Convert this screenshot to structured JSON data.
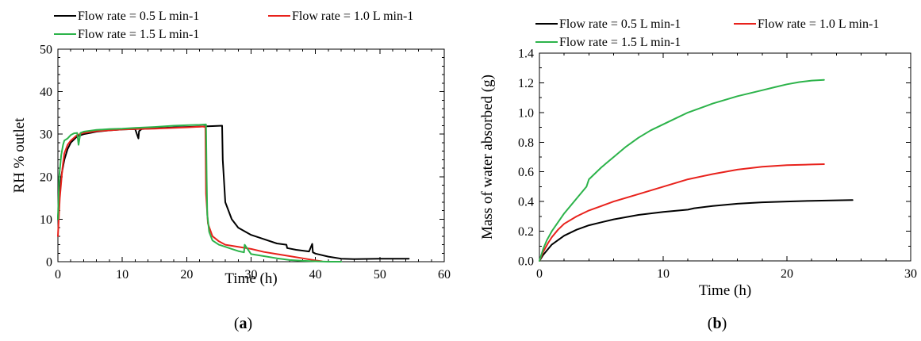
{
  "chart_data": [
    {
      "type": "line",
      "panel_label": "a",
      "xlabel": "Time (h)",
      "ylabel": "RH % outlet",
      "xlim": [
        0,
        60
      ],
      "ylim": [
        0,
        50
      ],
      "xticks": [
        0,
        10,
        20,
        30,
        40,
        50,
        60
      ],
      "yticks": [
        0,
        10,
        20,
        30,
        40,
        50
      ],
      "legend": {
        "placement": "top",
        "entries": [
          "Flow rate = 0.5 L min-1",
          "Flow rate = 1.0 L min-1",
          "Flow rate = 1.5 L min-1"
        ]
      },
      "series": [
        {
          "name": "Flow rate = 0.5 L min-1",
          "color": "#000000",
          "x": [
            0,
            0.2,
            0.5,
            1,
            1.5,
            2,
            3,
            4,
            5,
            6,
            8,
            10,
            12,
            12.5,
            12.6,
            13,
            15,
            18,
            20,
            22,
            24,
            25.5,
            25.6,
            26,
            27,
            28,
            30,
            32,
            34,
            35.5,
            35.6,
            37,
            39,
            39.5,
            39.6,
            40,
            42,
            44,
            46,
            50,
            54.5
          ],
          "y": [
            10,
            15,
            20,
            24,
            26.5,
            28,
            29.5,
            30,
            30.3,
            30.6,
            30.9,
            31.1,
            31.2,
            29,
            30.7,
            31.2,
            31.4,
            31.6,
            31.7,
            31.8,
            31.9,
            32,
            24,
            14,
            10,
            8,
            6.3,
            5.3,
            4.3,
            4,
            3.2,
            2.8,
            2.4,
            4.2,
            2.2,
            1.9,
            1.2,
            0.7,
            0.6,
            0.7,
            0.7
          ]
        },
        {
          "name": "Flow rate = 1.0 L min-1",
          "color": "#e8221c",
          "x": [
            0,
            0.3,
            0.7,
            1,
            1.5,
            2,
            3,
            4,
            6,
            8,
            10,
            12,
            15,
            18,
            20,
            22.5,
            22.9,
            23,
            23.3,
            24,
            25,
            26,
            28,
            30,
            32,
            34,
            36,
            38,
            40,
            41
          ],
          "y": [
            6,
            15,
            22,
            25.5,
            27.5,
            28.5,
            29.8,
            30.3,
            30.7,
            30.9,
            31.1,
            31.2,
            31.3,
            31.5,
            31.6,
            31.8,
            31.7,
            16,
            9,
            6,
            4.8,
            4,
            3.5,
            3,
            2.3,
            1.8,
            1.3,
            0.8,
            0.3,
            0.1
          ]
        },
        {
          "name": "Flow rate = 1.5 L min-1",
          "color": "#2cb34a",
          "x": [
            0,
            0.2,
            0.5,
            0.8,
            1,
            1.5,
            2,
            2.5,
            3,
            3.2,
            3.5,
            4,
            5,
            6,
            8,
            10,
            12,
            15,
            18,
            20,
            22,
            23,
            23.1,
            23.2,
            23.5,
            24,
            25,
            26,
            27,
            28,
            28.9,
            29,
            30,
            32,
            34,
            36,
            38,
            40,
            42,
            44
          ],
          "y": [
            10,
            20,
            25,
            27.5,
            28.5,
            29,
            29.8,
            30.2,
            30.3,
            27.5,
            30.3,
            30.6,
            30.8,
            31,
            31.2,
            31.3,
            31.5,
            31.7,
            32,
            32.1,
            32.2,
            32.3,
            20,
            11,
            7,
            5,
            4,
            3.5,
            3,
            2.5,
            2.2,
            4,
            1.8,
            1.3,
            0.8,
            0.4,
            0.2,
            0.1,
            0,
            0
          ]
        }
      ]
    },
    {
      "type": "line",
      "panel_label": "b",
      "xlabel": "Time (h)",
      "ylabel": "Mass of water absorbed (g)",
      "xlim": [
        0,
        30
      ],
      "ylim": [
        0,
        1.4
      ],
      "xticks": [
        0,
        10,
        20,
        30
      ],
      "yticks": [
        "0.0",
        "0.2",
        "0.4",
        "0.6",
        "0.8",
        "1.0",
        "1.2",
        "1.4"
      ],
      "legend": {
        "placement": "top",
        "entries": [
          "Flow rate = 0.5 L min-1",
          "Flow rate = 1.0 L min-1",
          "Flow rate = 1.5 L min-1"
        ]
      },
      "series": [
        {
          "name": "Flow rate = 0.5 L min-1",
          "color": "#000000",
          "x": [
            0,
            0.3,
            0.7,
            1,
            1.5,
            2,
            3,
            4,
            5,
            6,
            8,
            10,
            12,
            12.5,
            14,
            16,
            18,
            20,
            22,
            24,
            25.3
          ],
          "y": [
            0,
            0.04,
            0.08,
            0.11,
            0.14,
            0.17,
            0.21,
            0.24,
            0.26,
            0.28,
            0.31,
            0.33,
            0.345,
            0.355,
            0.37,
            0.385,
            0.395,
            0.4,
            0.405,
            0.408,
            0.41
          ]
        },
        {
          "name": "Flow rate = 1.0 L min-1",
          "color": "#e8221c",
          "x": [
            0,
            0.3,
            0.7,
            1,
            1.5,
            2,
            3,
            4,
            5,
            6,
            8,
            10,
            12,
            14,
            16,
            18,
            20,
            22,
            23
          ],
          "y": [
            0,
            0.06,
            0.12,
            0.16,
            0.21,
            0.25,
            0.3,
            0.34,
            0.37,
            0.4,
            0.45,
            0.5,
            0.55,
            0.585,
            0.615,
            0.635,
            0.645,
            0.65,
            0.652
          ]
        },
        {
          "name": "Flow rate = 1.5 L min-1",
          "color": "#2cb34a",
          "x": [
            0,
            0.3,
            0.6,
            1,
            1.5,
            2,
            3,
            3.8,
            4,
            5,
            6,
            7,
            8,
            9,
            10,
            11,
            12,
            14,
            16,
            18,
            19,
            20,
            21,
            22,
            23
          ],
          "y": [
            0,
            0.08,
            0.14,
            0.2,
            0.26,
            0.32,
            0.42,
            0.5,
            0.55,
            0.63,
            0.7,
            0.77,
            0.83,
            0.88,
            0.92,
            0.96,
            1.0,
            1.06,
            1.11,
            1.15,
            1.17,
            1.19,
            1.205,
            1.215,
            1.22
          ]
        }
      ]
    }
  ]
}
